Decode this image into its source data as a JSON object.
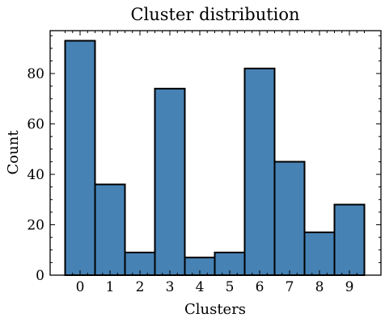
{
  "chart_data": {
    "type": "bar",
    "title": "Cluster distribution",
    "xlabel": "Clusters",
    "ylabel": "Count",
    "categories": [
      "0",
      "1",
      "2",
      "3",
      "4",
      "5",
      "6",
      "7",
      "8",
      "9"
    ],
    "values": [
      93,
      36,
      9,
      74,
      7,
      9,
      82,
      45,
      17,
      28
    ],
    "ylim": [
      0,
      97
    ],
    "yticks": [
      0,
      20,
      40,
      60,
      80
    ],
    "bar_color": "#4682b4",
    "edge_color": "#000000",
    "grid": false,
    "legend": "none"
  }
}
